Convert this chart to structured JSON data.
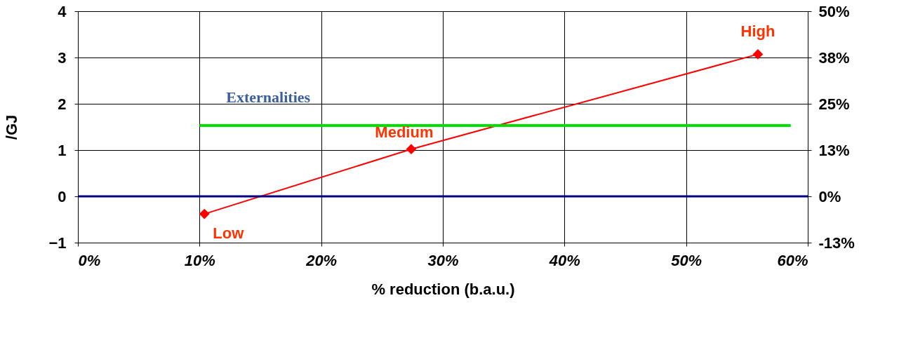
{
  "chart_data": {
    "type": "line",
    "xlabel": "% reduction (b.a.u.)",
    "ylabel": "/GJ",
    "x": [
      10.4,
      27.4,
      55.9
    ],
    "series": [
      {
        "color": "#ff0000",
        "values": [
          -0.38,
          1.02,
          3.07
        ],
        "marker": "diamond"
      },
      {
        "name": "Externalities",
        "color": "#00e000",
        "x": [
          10.0,
          58.6
        ],
        "values": [
          1.53,
          1.53
        ],
        "marker": "none"
      }
    ],
    "xlim": [
      0,
      60
    ],
    "xticks": [
      {
        "value": 0,
        "label": "0%"
      },
      {
        "value": 10,
        "label": "10%"
      },
      {
        "value": 20,
        "label": "20%"
      },
      {
        "value": 30,
        "label": "30%"
      },
      {
        "value": 40,
        "label": "40%"
      },
      {
        "value": 50,
        "label": "50%"
      },
      {
        "value": 60,
        "label": "60%"
      }
    ],
    "ylim": [
      -1,
      4
    ],
    "yticks": [
      -1,
      0,
      1,
      2,
      3,
      4
    ],
    "y2lim": [
      -12.5,
      50
    ],
    "y2ticks": [
      {
        "value": -12.5,
        "label": "-13%"
      },
      {
        "value": 0,
        "label": "0%"
      },
      {
        "value": 12.5,
        "label": "13%"
      },
      {
        "value": 25,
        "label": "25%"
      },
      {
        "value": 37.5,
        "label": "38%"
      },
      {
        "value": 50,
        "label": "50%"
      }
    ],
    "ref_lines": [
      {
        "axis": "y",
        "value": 0,
        "color": "#000080"
      }
    ],
    "annotations": [
      {
        "text": "Low",
        "x": 10.4,
        "y": -0.38
      },
      {
        "text": "Medium",
        "x": 27.4,
        "y": 1.02
      },
      {
        "text": "High",
        "x": 55.9,
        "y": 3.07
      }
    ],
    "grid": true,
    "legend": false,
    "line_style": "solid"
  }
}
